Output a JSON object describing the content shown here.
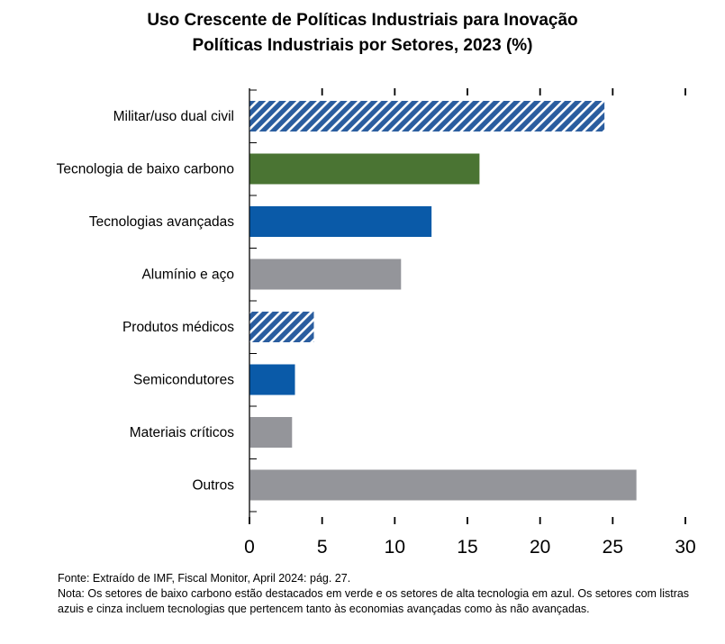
{
  "title": "Uso Crescente de Políticas Industriais para Inovação",
  "subtitle": "Políticas Industriais por Setores, 2023 (%)",
  "colors": {
    "hatched_blue": "#2a5d9f",
    "hatched_white": "#ffffff",
    "green": "#4a7433",
    "blue": "#0a5aa8",
    "gray": "#94959a"
  },
  "chart_data": {
    "type": "bar",
    "orientation": "horizontal",
    "categories": [
      "Militar/uso dual civil",
      "Tecnologia de baixo carbono",
      "Tecnologias avançadas",
      "Alumínio e aço",
      "Produtos médicos",
      "Semicondutores",
      "Materiais críticos",
      "Outros"
    ],
    "values": [
      24.4,
      15.8,
      12.5,
      10.4,
      4.4,
      3.1,
      2.9,
      26.6
    ],
    "bar_styles": [
      "hatched",
      "green",
      "blue",
      "gray",
      "hatched",
      "blue",
      "gray",
      "gray"
    ],
    "xlim": [
      0,
      30
    ],
    "xticks": [
      0,
      5,
      10,
      15,
      20,
      25,
      30
    ],
    "grid": false
  },
  "notes": {
    "source": "Fonte: Extraído de IMF, Fiscal Monitor, April 2024: pág. 27.",
    "note": "Nota: Os setores de baixo carbono estão destacados em verde e os setores de alta tecnologia em azul. Os setores com listras azuis e cinza incluem tecnologias que pertencem tanto às economias avançadas como às não avançadas."
  }
}
